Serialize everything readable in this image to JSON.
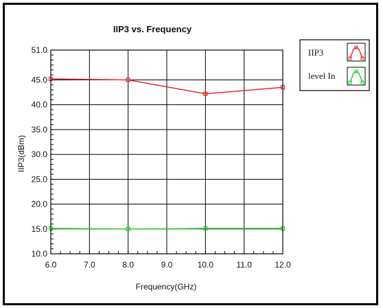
{
  "chart_data": {
    "type": "line",
    "title": "IIP3 vs. Frequency",
    "xlabel": "Frequency(GHz)",
    "ylabel": "IIP3(dBm)",
    "xlim": [
      6.0,
      12.0
    ],
    "ylim": [
      10.0,
      51.0
    ],
    "x_ticks": [
      "6.0",
      "7.0",
      "8.0",
      "9.0",
      "10.0",
      "11.0",
      "12.0"
    ],
    "y_ticks": [
      "10.0",
      "15.0",
      "20.0",
      "25.0",
      "30.0",
      "35.0",
      "40.0",
      "45.0",
      "51.0"
    ],
    "grid": true,
    "legend_position": "right",
    "series": [
      {
        "name": "IIP3",
        "color": "#e8282e",
        "x": [
          6.0,
          8.0,
          10.0,
          12.0
        ],
        "values": [
          45.2,
          45.0,
          42.2,
          43.5
        ]
      },
      {
        "name": "level In",
        "color": "#22d02a",
        "x": [
          6.0,
          8.0,
          10.0,
          12.0
        ],
        "values": [
          15.1,
          15.0,
          15.1,
          15.1
        ]
      }
    ]
  }
}
